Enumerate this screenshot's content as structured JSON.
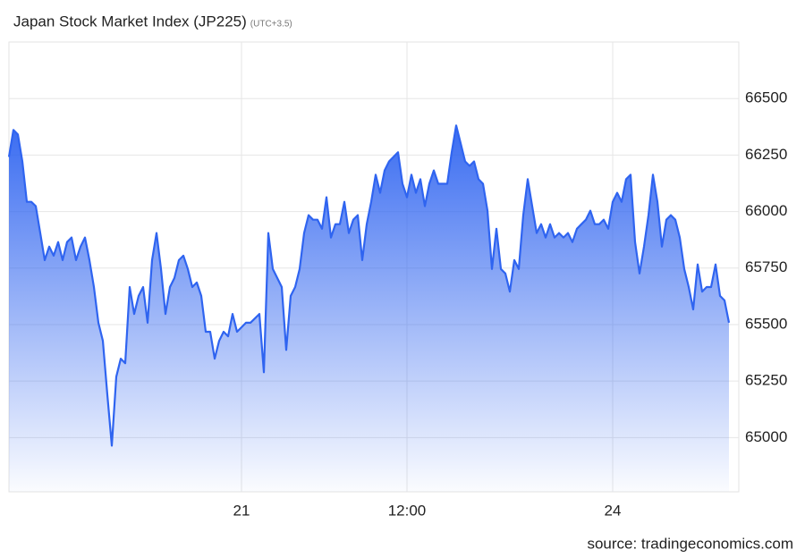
{
  "chart_data": {
    "type": "area",
    "title": "Japan Stock Market Index (JP225)",
    "subtitle": "(UTC+3.5)",
    "source": "source: tradingeconomics.com",
    "color": "#2f64f0",
    "grid": true,
    "categories": [
      null,
      null,
      null,
      null,
      null,
      null,
      null,
      null,
      null,
      null,
      null,
      null,
      null,
      null,
      null,
      null,
      null,
      null,
      null,
      null,
      null,
      null,
      null,
      null,
      null,
      null,
      null,
      null,
      null,
      null,
      null,
      null,
      null,
      null,
      null,
      null,
      null,
      null,
      null,
      null,
      null,
      null,
      null,
      null,
      null,
      null,
      null,
      null,
      null,
      null,
      null,
      null,
      "21",
      null,
      null,
      null,
      null,
      null,
      null,
      null,
      null,
      null,
      null,
      null,
      null,
      null,
      null,
      null,
      null,
      null,
      null,
      null,
      null,
      null,
      null,
      null,
      null,
      null,
      null,
      null,
      null,
      null,
      null,
      null,
      null,
      null,
      null,
      null,
      null,
      "12:00",
      null,
      null,
      null,
      null,
      null,
      null,
      null,
      null,
      null,
      null,
      null,
      null,
      null,
      null,
      null,
      null,
      null,
      null,
      null,
      null,
      null,
      null,
      null,
      null,
      null,
      null,
      null,
      null,
      null,
      null,
      null,
      null,
      null,
      null,
      null,
      null,
      null,
      null,
      null,
      null,
      null,
      null,
      null,
      null,
      null,
      "24",
      null,
      null,
      null,
      null,
      null,
      null,
      null,
      null,
      null,
      null,
      null,
      null,
      null,
      null,
      null,
      null,
      null,
      null,
      null,
      null,
      null,
      null,
      null,
      null,
      null,
      null
    ],
    "values": [
      66242,
      66361,
      66341,
      66222,
      66043,
      66043,
      66024,
      65905,
      65785,
      65845,
      65805,
      65865,
      65785,
      65865,
      65885,
      65785,
      65845,
      65885,
      65785,
      65666,
      65508,
      65428,
      65190,
      64964,
      65269,
      65349,
      65329,
      65666,
      65547,
      65627,
      65666,
      65508,
      65785,
      65905,
      65746,
      65547,
      65666,
      65706,
      65785,
      65805,
      65746,
      65666,
      65686,
      65627,
      65468,
      65468,
      65349,
      65428,
      65468,
      65448,
      65547,
      65468,
      65488,
      65508,
      65508,
      65527,
      65547,
      65289,
      65905,
      65746,
      65706,
      65666,
      65388,
      65627,
      65666,
      65746,
      65905,
      65984,
      65964,
      65964,
      65924,
      66063,
      65885,
      65944,
      65944,
      66043,
      65905,
      65964,
      65984,
      65785,
      65944,
      66043,
      66163,
      66083,
      66182,
      66222,
      66242,
      66262,
      66123,
      66063,
      66163,
      66083,
      66143,
      66024,
      66123,
      66182,
      66123,
      66123,
      66123,
      66262,
      66381,
      66302,
      66222,
      66202,
      66222,
      66143,
      66123,
      66004,
      65746,
      65924,
      65746,
      65726,
      65646,
      65785,
      65746,
      65984,
      66143,
      66024,
      65905,
      65944,
      65885,
      65944,
      65885,
      65905,
      65885,
      65905,
      65865,
      65924,
      65944,
      65964,
      66004,
      65944,
      65944,
      65964,
      65924,
      66043,
      66083,
      66043,
      66143,
      66163,
      65865,
      65726,
      65845,
      65984,
      66163,
      66043,
      65845,
      65964,
      65984,
      65964,
      65885,
      65746,
      65666,
      65567,
      65766,
      65646,
      65666,
      65666,
      65766,
      65627,
      65607,
      65508
    ],
    "ylim": [
      64760,
      66750
    ],
    "yticks": [
      65000,
      65250,
      65500,
      65750,
      66000,
      66250,
      66500
    ]
  }
}
